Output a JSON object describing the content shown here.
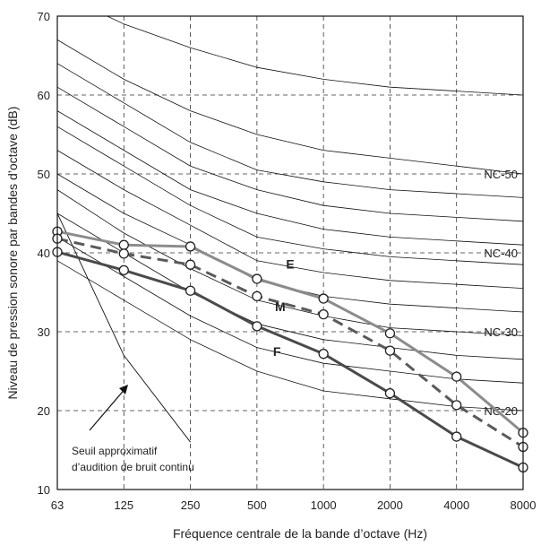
{
  "chart_data": {
    "type": "line",
    "xlabel": "Fréquence centrale de la bande d’octave (Hz)",
    "ylabel": "Niveau de pression sonore par bandes d’octave (dB)",
    "categories": [
      "63",
      "125",
      "250",
      "500",
      "1000",
      "2000",
      "4000",
      "8000"
    ],
    "yticks": [
      "10",
      "20",
      "30",
      "40",
      "50",
      "60",
      "70"
    ],
    "ylim": [
      10,
      70
    ],
    "grid": true,
    "series": [
      {
        "name": "E",
        "color": "#8c8c8c",
        "dashed": false,
        "values": [
          42.7,
          41.0,
          40.8,
          36.7,
          34.2,
          29.8,
          24.3,
          17.2
        ]
      },
      {
        "name": "M",
        "color": "#5a5a5a",
        "dashed": true,
        "values": [
          41.8,
          39.9,
          38.5,
          34.5,
          32.2,
          27.6,
          20.7,
          15.4
        ]
      },
      {
        "name": "F",
        "color": "#4a4a4a",
        "dashed": false,
        "values": [
          40.1,
          37.8,
          35.2,
          30.7,
          27.2,
          22.2,
          16.7,
          12.8
        ]
      }
    ],
    "nc_curve_labels": [
      {
        "text": "NC-50",
        "value": 50
      },
      {
        "text": "NC-40",
        "value": 40
      },
      {
        "text": "NC-30",
        "value": 30
      },
      {
        "text": "NC-20",
        "value": 20
      }
    ],
    "nc_curves": [
      [
        73,
        69,
        66,
        63.5,
        62,
        61,
        60.5,
        60
      ],
      [
        67,
        62,
        58,
        55,
        53,
        52,
        51,
        50
      ],
      [
        64,
        59,
        54,
        50.5,
        49,
        48,
        47.5,
        47
      ],
      [
        61,
        56,
        51,
        48,
        46,
        45,
        44.5,
        44
      ],
      [
        58,
        53,
        48,
        45,
        43,
        42,
        41.5,
        41
      ],
      [
        56,
        51,
        46,
        42,
        40.5,
        39.5,
        39,
        38.5
      ],
      [
        53,
        48,
        43.5,
        39,
        37.5,
        36.5,
        36,
        35.5
      ],
      [
        50,
        45,
        41,
        36.5,
        34.5,
        33.5,
        33,
        32.5
      ],
      [
        48,
        42.5,
        38,
        34,
        32,
        30.5,
        30,
        29.5
      ],
      [
        45,
        40,
        35,
        31,
        29,
        28,
        27,
        26.5
      ],
      [
        42,
        37,
        32,
        28,
        26,
        25,
        24,
        23.5
      ],
      [
        39,
        34,
        29,
        25,
        22.5,
        21.5,
        20.5,
        20
      ]
    ],
    "threshold_curve": [
      {
        "x": 0,
        "y": 45
      },
      {
        "x": 1,
        "y": 27
      },
      {
        "x": 2,
        "y": 16
      }
    ],
    "annotation": {
      "lines": [
        "Seuil approximatif",
        "d’audition de bruit continu"
      ]
    }
  }
}
